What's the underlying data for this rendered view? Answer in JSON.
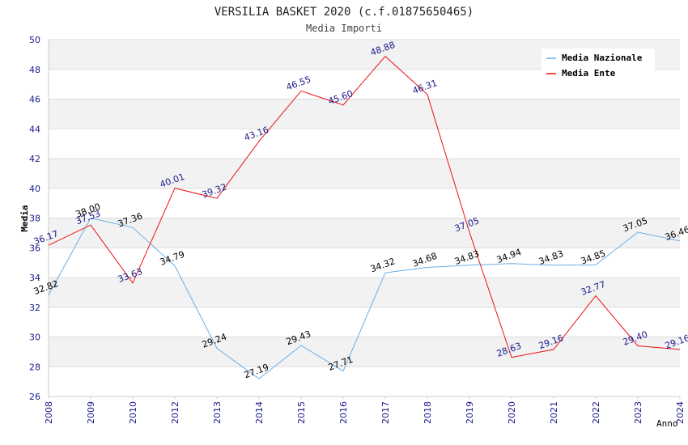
{
  "chart_data": {
    "type": "line",
    "title": "VERSILIA BASKET 2020 (c.f.01875650465)",
    "subtitle": "Media Importi",
    "xlabel": "Anno",
    "ylabel": "Media",
    "ylim": [
      26,
      50
    ],
    "yticks": [
      "26",
      "28",
      "30",
      "32",
      "34",
      "36",
      "38",
      "40",
      "42",
      "44",
      "46",
      "48",
      "50"
    ],
    "grid": true,
    "legend_position": "top-right",
    "categories": [
      "2008",
      "2009",
      "2010",
      "2012",
      "2013",
      "2014",
      "2015",
      "2016",
      "2017",
      "2018",
      "2019",
      "2020",
      "2021",
      "2022",
      "2023",
      "2024"
    ],
    "series": [
      {
        "name": "Media Nazionale",
        "color": "#6aaee8",
        "label_color": "#000000",
        "values": [
          32.82,
          38.0,
          37.36,
          34.79,
          29.24,
          27.19,
          29.43,
          27.71,
          34.32,
          34.68,
          34.83,
          34.94,
          34.83,
          34.85,
          37.05,
          36.46
        ],
        "labels": [
          "32.82",
          "38.00",
          "37.36",
          "34.79",
          "29.24",
          "27.19",
          "29.43",
          "27.71",
          "34.32",
          "34.68",
          "34.83",
          "34.94",
          "34.83",
          "34.85",
          "37.05",
          "36.46"
        ]
      },
      {
        "name": "Media Ente",
        "color": "#ee1111",
        "label_color": "#1a1a8c",
        "values": [
          36.17,
          37.53,
          33.63,
          40.01,
          39.32,
          43.16,
          46.55,
          45.6,
          48.88,
          46.31,
          37.05,
          28.63,
          29.16,
          32.77,
          29.4,
          29.16
        ],
        "labels": [
          "36.17",
          "37.53",
          "33.63",
          "40.01",
          "39.32",
          "43.16",
          "46.55",
          "45.60",
          "48.88",
          "46.31",
          "37.05",
          "28.63",
          "29.16",
          "32.77",
          "29.40",
          "29.16"
        ]
      }
    ]
  },
  "colors": {
    "band": "#f2f2f2",
    "grid": "#dddddd",
    "axis": "#cccccc",
    "tick_label": "#1a1a8c",
    "title": "#222222"
  }
}
